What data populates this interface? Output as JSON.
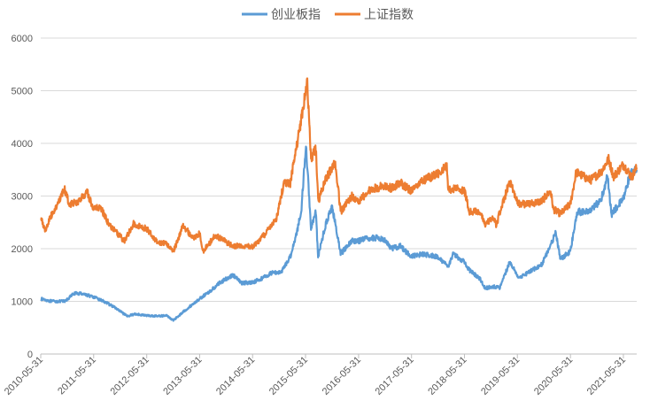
{
  "chart_data": {
    "type": "line",
    "legend_position": "top",
    "grid": "horizontal",
    "ylim": [
      0,
      6000
    ],
    "y_ticks": [
      "0",
      "1000",
      "2000",
      "3000",
      "4000",
      "5000",
      "6000"
    ],
    "x_tick_labels": [
      "2010-05-31",
      "2011-05-31",
      "2012-05-31",
      "2013-05-31",
      "2014-05-31",
      "2015-05-31",
      "2016-05-31",
      "2017-05-31",
      "2018-05-31",
      "2019-05-31",
      "2020-05-31",
      "2021-05-31"
    ],
    "x_range": [
      "2010-05-31",
      "2021-08-31"
    ],
    "series": [
      {
        "name": "创业板指",
        "color": "#5B9BD5",
        "points": [
          [
            "2010-05-31",
            1050
          ],
          [
            "2010-08-15",
            1000
          ],
          [
            "2010-11-15",
            1000
          ],
          [
            "2011-01-15",
            1150
          ],
          [
            "2011-03-15",
            1150
          ],
          [
            "2011-05-31",
            1080
          ],
          [
            "2011-08-01",
            1010
          ],
          [
            "2011-10-15",
            900
          ],
          [
            "2012-01-15",
            720
          ],
          [
            "2012-03-15",
            760
          ],
          [
            "2012-05-31",
            730
          ],
          [
            "2012-08-15",
            720
          ],
          [
            "2012-10-15",
            730
          ],
          [
            "2012-12-01",
            640
          ],
          [
            "2013-02-15",
            820
          ],
          [
            "2013-05-31",
            1050
          ],
          [
            "2013-08-15",
            1200
          ],
          [
            "2013-10-15",
            1350
          ],
          [
            "2014-01-15",
            1500
          ],
          [
            "2014-03-15",
            1350
          ],
          [
            "2014-05-31",
            1360
          ],
          [
            "2014-08-15",
            1450
          ],
          [
            "2014-10-15",
            1550
          ],
          [
            "2014-12-15",
            1550
          ],
          [
            "2015-02-15",
            1850
          ],
          [
            "2015-03-31",
            2300
          ],
          [
            "2015-05-01",
            2700
          ],
          [
            "2015-06-03",
            3980
          ],
          [
            "2015-07-08",
            2400
          ],
          [
            "2015-08-10",
            2700
          ],
          [
            "2015-08-26",
            1850
          ],
          [
            "2015-10-20",
            2500
          ],
          [
            "2015-12-01",
            2800
          ],
          [
            "2016-01-28",
            1900
          ],
          [
            "2016-04-15",
            2150
          ],
          [
            "2016-05-31",
            2150
          ],
          [
            "2016-08-15",
            2200
          ],
          [
            "2016-11-15",
            2200
          ],
          [
            "2017-01-15",
            2000
          ],
          [
            "2017-03-15",
            2050
          ],
          [
            "2017-05-31",
            1850
          ],
          [
            "2017-08-15",
            1900
          ],
          [
            "2017-11-15",
            1850
          ],
          [
            "2018-01-31",
            1700
          ],
          [
            "2018-02-09",
            1680
          ],
          [
            "2018-03-15",
            1900
          ],
          [
            "2018-05-31",
            1750
          ],
          [
            "2018-07-01",
            1600
          ],
          [
            "2018-09-15",
            1430
          ],
          [
            "2018-10-19",
            1250
          ],
          [
            "2018-12-15",
            1280
          ],
          [
            "2019-01-31",
            1260
          ],
          [
            "2019-04-08",
            1750
          ],
          [
            "2019-06-10",
            1450
          ],
          [
            "2019-08-15",
            1550
          ],
          [
            "2019-11-15",
            1700
          ],
          [
            "2020-02-20",
            2300
          ],
          [
            "2020-03-23",
            1800
          ],
          [
            "2020-05-31",
            1950
          ],
          [
            "2020-07-15",
            2700
          ],
          [
            "2020-10-15",
            2700
          ],
          [
            "2020-12-31",
            2960
          ],
          [
            "2021-02-10",
            3380
          ],
          [
            "2021-03-10",
            2650
          ],
          [
            "2021-05-31",
            2950
          ],
          [
            "2021-07-15",
            3400
          ],
          [
            "2021-08-31",
            3500
          ]
        ]
      },
      {
        "name": "上证指数",
        "color": "#ED7D31",
        "points": [
          [
            "2010-05-31",
            2590
          ],
          [
            "2010-07-02",
            2350
          ],
          [
            "2010-08-15",
            2650
          ],
          [
            "2010-10-15",
            2950
          ],
          [
            "2010-11-10",
            3140
          ],
          [
            "2010-12-15",
            2850
          ],
          [
            "2011-02-15",
            2900
          ],
          [
            "2011-04-18",
            3060
          ],
          [
            "2011-05-31",
            2740
          ],
          [
            "2011-07-15",
            2800
          ],
          [
            "2011-09-15",
            2450
          ],
          [
            "2011-12-28",
            2150
          ],
          [
            "2012-03-01",
            2470
          ],
          [
            "2012-05-31",
            2380
          ],
          [
            "2012-08-15",
            2120
          ],
          [
            "2012-10-15",
            2100
          ],
          [
            "2012-12-03",
            1960
          ],
          [
            "2013-02-06",
            2440
          ],
          [
            "2013-04-15",
            2200
          ],
          [
            "2013-05-31",
            2300
          ],
          [
            "2013-06-25",
            1950
          ],
          [
            "2013-09-15",
            2250
          ],
          [
            "2013-11-15",
            2150
          ],
          [
            "2014-01-15",
            2050
          ],
          [
            "2014-03-15",
            2050
          ],
          [
            "2014-05-31",
            2040
          ],
          [
            "2014-07-15",
            2150
          ],
          [
            "2014-09-15",
            2350
          ],
          [
            "2014-11-15",
            2600
          ],
          [
            "2014-12-31",
            3230
          ],
          [
            "2015-02-15",
            3250
          ],
          [
            "2015-04-15",
            4200
          ],
          [
            "2015-06-12",
            5150
          ],
          [
            "2015-07-08",
            3700
          ],
          [
            "2015-08-10",
            3900
          ],
          [
            "2015-08-26",
            2900
          ],
          [
            "2015-10-15",
            3300
          ],
          [
            "2015-12-22",
            3650
          ],
          [
            "2016-01-28",
            2700
          ],
          [
            "2016-04-15",
            3000
          ],
          [
            "2016-05-31",
            2900
          ],
          [
            "2016-08-15",
            3100
          ],
          [
            "2016-11-15",
            3200
          ],
          [
            "2017-01-15",
            3150
          ],
          [
            "2017-03-15",
            3250
          ],
          [
            "2017-05-31",
            3100
          ],
          [
            "2017-08-15",
            3300
          ],
          [
            "2017-11-15",
            3400
          ],
          [
            "2018-01-29",
            3560
          ],
          [
            "2018-02-09",
            3130
          ],
          [
            "2018-04-15",
            3150
          ],
          [
            "2018-05-31",
            3100
          ],
          [
            "2018-07-05",
            2700
          ],
          [
            "2018-09-15",
            2700
          ],
          [
            "2018-10-19",
            2450
          ],
          [
            "2018-12-15",
            2600
          ],
          [
            "2019-01-04",
            2450
          ],
          [
            "2019-04-08",
            3280
          ],
          [
            "2019-06-10",
            2850
          ],
          [
            "2019-08-15",
            2850
          ],
          [
            "2019-11-15",
            2900
          ],
          [
            "2020-01-15",
            3100
          ],
          [
            "2020-02-03",
            2750
          ],
          [
            "2020-03-23",
            2660
          ],
          [
            "2020-05-31",
            2850
          ],
          [
            "2020-07-09",
            3450
          ],
          [
            "2020-10-15",
            3300
          ],
          [
            "2020-12-31",
            3470
          ],
          [
            "2021-02-18",
            3700
          ],
          [
            "2021-03-25",
            3370
          ],
          [
            "2021-05-31",
            3600
          ],
          [
            "2021-07-28",
            3360
          ],
          [
            "2021-08-31",
            3540
          ]
        ]
      }
    ]
  }
}
